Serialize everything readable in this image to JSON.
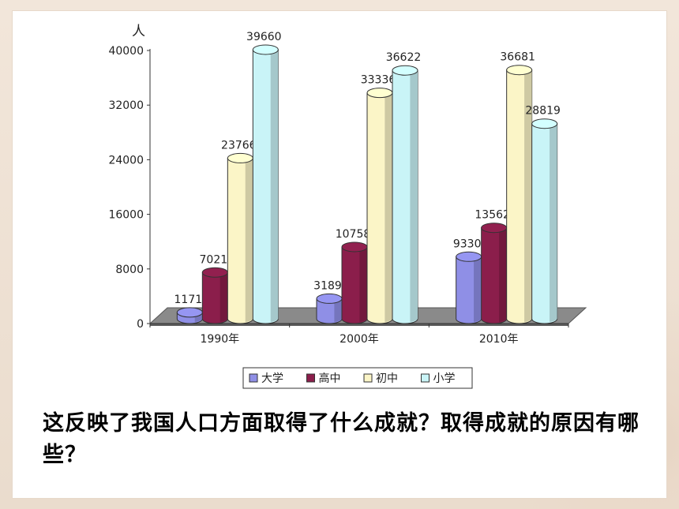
{
  "chart_data": {
    "type": "bar",
    "y_unit_label": "人",
    "categories": [
      "1990年",
      "2000年",
      "2010年"
    ],
    "series": [
      {
        "name": "大学",
        "color": "#8f8fe6",
        "values": [
          1171,
          3189,
          9330
        ]
      },
      {
        "name": "高中",
        "color": "#8b1e4b",
        "values": [
          7021,
          10758,
          13562
        ]
      },
      {
        "name": "初中",
        "color": "#fbf5c7",
        "values": [
          23766,
          33336,
          36681
        ]
      },
      {
        "name": "小学",
        "color": "#c9f4f7",
        "values": [
          39660,
          36622,
          28819
        ]
      }
    ],
    "y_ticks": [
      "0",
      "8000",
      "16000",
      "24000",
      "32000",
      "40000"
    ],
    "ylim": [
      0,
      40000
    ],
    "legend_position": "bottom",
    "three_d": true
  },
  "caption": "这反映了我国人口方面取得了什么成就？取得成就的原因有哪些？"
}
